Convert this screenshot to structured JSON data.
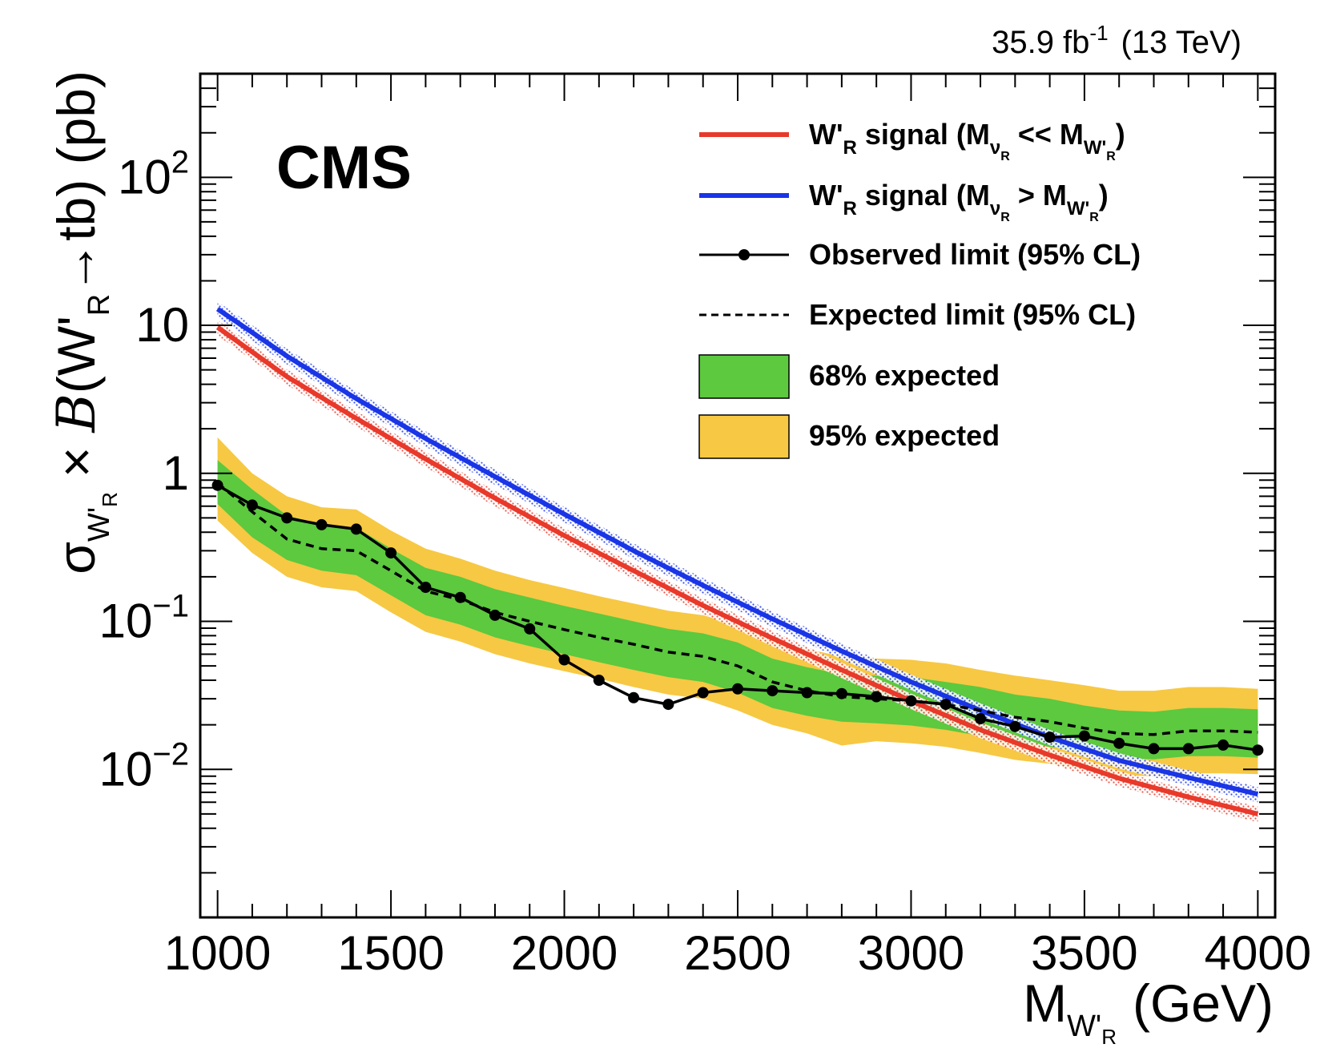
{
  "chart_data": {
    "type": "line",
    "experiment_label": "CMS",
    "luminosity_label": {
      "value": "35.9 fb",
      "superscript": "-1",
      "energy": "(13 TeV)"
    },
    "xlabel": {
      "main": "M",
      "sub": "W'",
      "subsub": "R",
      "unit": "(GeV)"
    },
    "ylabel": {
      "sigma": "σ",
      "sigma_sub": "W'",
      "sigma_subsub": "R",
      "times": "×",
      "B": "B",
      "open": "(W'",
      "R": "R",
      "arrow": "→",
      "close": "tb) (pb)"
    },
    "xlim": [
      950,
      4050
    ],
    "ylim_log10": [
      -3.0,
      2.7
    ],
    "y_scale": "log",
    "x_ticks": [
      1000,
      1500,
      2000,
      2500,
      3000,
      3500,
      4000
    ],
    "x_tick_labels": [
      "1000",
      "1500",
      "2000",
      "2500",
      "3000",
      "3500",
      "4000"
    ],
    "y_ticks": [
      {
        "value": 0.01,
        "base": "10",
        "exp": "−2"
      },
      {
        "value": 0.1,
        "base": "10",
        "exp": "−1"
      },
      {
        "value": 1,
        "base": "1",
        "exp": ""
      },
      {
        "value": 10,
        "base": "10",
        "exp": ""
      },
      {
        "value": 100,
        "base": "10",
        "exp": "2"
      }
    ],
    "legend": {
      "position": "top-right",
      "entries": [
        {
          "key": "signal_red",
          "text": "W'R signal (Mν_R << MW'R)",
          "parts": [
            "W'",
            "R",
            " signal (M",
            "ν",
            "R",
            " << M",
            "W'",
            "R",
            ")"
          ]
        },
        {
          "key": "signal_blue",
          "text": "W'R signal (Mν_R > MW'R)",
          "parts": [
            "W'",
            "R",
            " signal (M",
            "ν",
            "R",
            " > M",
            "W'",
            "R",
            ")"
          ]
        },
        {
          "key": "observed",
          "text": "Observed limit (95% CL)"
        },
        {
          "key": "expected",
          "text": "Expected limit (95% CL)"
        },
        {
          "key": "band68",
          "text": "68% expected"
        },
        {
          "key": "band95",
          "text": "95% expected"
        }
      ]
    },
    "colors": {
      "signal_red": "#e8392a",
      "signal_blue": "#1a35e6",
      "band68": "#5cc93f",
      "band95": "#f7c843",
      "observed": "#000000",
      "expected": "#000000"
    },
    "series": [
      {
        "name": "W'R signal (Mν_R << MW'R)",
        "x": [
          1000,
          1200,
          1400,
          1600,
          1800,
          2000,
          2200,
          2400,
          2600,
          2800,
          3000,
          3200,
          3400,
          3600,
          3800,
          4000
        ],
        "values": [
          9.7,
          4.5,
          2.35,
          1.25,
          0.68,
          0.38,
          0.22,
          0.128,
          0.077,
          0.047,
          0.029,
          0.0185,
          0.0125,
          0.0087,
          0.0065,
          0.005
        ],
        "uncertainty_fraction": 0.12
      },
      {
        "name": "W'R signal (Mν_R > MW'R)",
        "x": [
          1000,
          1200,
          1400,
          1600,
          1800,
          2000,
          2200,
          2400,
          2600,
          2800,
          3000,
          3200,
          3400,
          3600,
          3800,
          4000
        ],
        "values": [
          12.9,
          6.2,
          3.2,
          1.72,
          0.95,
          0.53,
          0.3,
          0.175,
          0.104,
          0.063,
          0.039,
          0.025,
          0.0165,
          0.0115,
          0.0088,
          0.0068
        ],
        "uncertainty_fraction": 0.12
      },
      {
        "name": "Observed limit (95% CL)",
        "x": [
          1000,
          1100,
          1200,
          1300,
          1400,
          1500,
          1600,
          1700,
          1800,
          1900,
          2000,
          2100,
          2200,
          2300,
          2400,
          2500,
          2600,
          2700,
          2800,
          2900,
          3000,
          3100,
          3200,
          3300,
          3400,
          3500,
          3600,
          3700,
          3800,
          3900,
          4000
        ],
        "values": [
          0.83,
          0.61,
          0.5,
          0.45,
          0.42,
          0.29,
          0.17,
          0.145,
          0.11,
          0.089,
          0.055,
          0.04,
          0.0305,
          0.0275,
          0.033,
          0.035,
          0.034,
          0.033,
          0.0325,
          0.031,
          0.029,
          0.0275,
          0.022,
          0.0195,
          0.0165,
          0.0168,
          0.015,
          0.0138,
          0.0138,
          0.0146,
          0.0135
        ]
      },
      {
        "name": "Expected limit (95% CL)",
        "x": [
          1000,
          1100,
          1200,
          1300,
          1400,
          1500,
          1600,
          1700,
          1800,
          1900,
          2000,
          2100,
          2200,
          2300,
          2400,
          2500,
          2600,
          2700,
          2800,
          2900,
          3000,
          3100,
          3200,
          3300,
          3400,
          3500,
          3600,
          3700,
          3800,
          3900,
          4000
        ],
        "values": [
          0.86,
          0.55,
          0.36,
          0.31,
          0.3,
          0.22,
          0.16,
          0.14,
          0.115,
          0.1,
          0.088,
          0.078,
          0.07,
          0.062,
          0.058,
          0.05,
          0.039,
          0.034,
          0.031,
          0.03,
          0.029,
          0.0275,
          0.025,
          0.0225,
          0.021,
          0.019,
          0.0175,
          0.0172,
          0.0182,
          0.0182,
          0.0178
        ]
      }
    ],
    "bands": {
      "x": [
        1000,
        1100,
        1200,
        1300,
        1400,
        1500,
        1600,
        1700,
        1800,
        1900,
        2000,
        2100,
        2200,
        2300,
        2400,
        2500,
        2600,
        2700,
        2800,
        2900,
        3000,
        3100,
        3200,
        3300,
        3400,
        3500,
        3600,
        3700,
        3800,
        3900,
        4000
      ],
      "band68_low": [
        0.62,
        0.37,
        0.26,
        0.22,
        0.205,
        0.15,
        0.11,
        0.095,
        0.078,
        0.068,
        0.06,
        0.053,
        0.047,
        0.042,
        0.039,
        0.033,
        0.026,
        0.023,
        0.021,
        0.0205,
        0.0198,
        0.0185,
        0.0168,
        0.0152,
        0.0142,
        0.0129,
        0.0119,
        0.0117,
        0.0123,
        0.0123,
        0.012
      ],
      "band68_high": [
        1.23,
        0.78,
        0.52,
        0.45,
        0.43,
        0.31,
        0.23,
        0.2,
        0.165,
        0.145,
        0.127,
        0.113,
        0.1,
        0.089,
        0.083,
        0.072,
        0.056,
        0.049,
        0.044,
        0.043,
        0.042,
        0.039,
        0.036,
        0.032,
        0.03,
        0.027,
        0.025,
        0.0245,
        0.026,
        0.026,
        0.0255
      ],
      "band95_low": [
        0.48,
        0.29,
        0.2,
        0.17,
        0.16,
        0.115,
        0.085,
        0.073,
        0.06,
        0.052,
        0.046,
        0.041,
        0.036,
        0.032,
        0.03,
        0.025,
        0.02,
        0.0175,
        0.0145,
        0.0155,
        0.015,
        0.0142,
        0.0129,
        0.0116,
        0.0109,
        0.0099,
        0.0091,
        0.009,
        0.0094,
        0.0094,
        0.0093
      ],
      "band95_high": [
        1.75,
        1.0,
        0.7,
        0.59,
        0.57,
        0.41,
        0.31,
        0.265,
        0.22,
        0.19,
        0.168,
        0.148,
        0.132,
        0.118,
        0.11,
        0.095,
        0.074,
        0.065,
        0.058,
        0.056,
        0.055,
        0.052,
        0.047,
        0.043,
        0.04,
        0.037,
        0.034,
        0.034,
        0.036,
        0.036,
        0.035
      ]
    }
  }
}
